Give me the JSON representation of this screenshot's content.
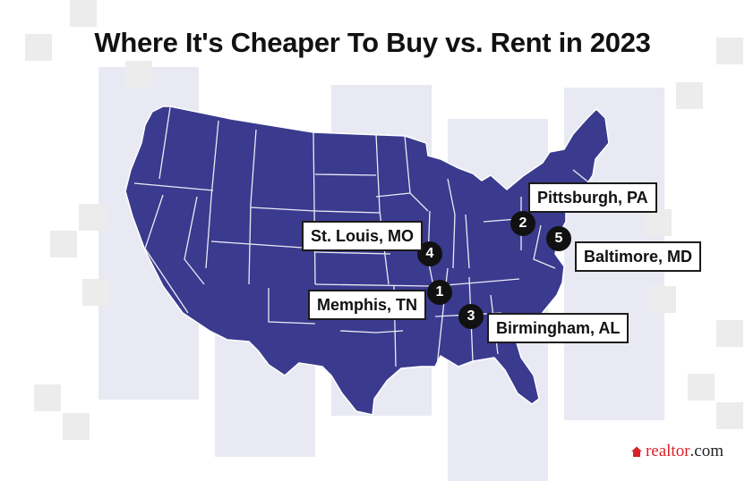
{
  "title": "Where It's Cheaper To Buy vs. Rent in 2023",
  "accent_color": "#3a3a8f",
  "cities": [
    {
      "rank": "1",
      "name": "Memphis, TN"
    },
    {
      "rank": "2",
      "name": "Pittsburgh, PA"
    },
    {
      "rank": "3",
      "name": "Birmingham, AL"
    },
    {
      "rank": "4",
      "name": "St. Louis, MO"
    },
    {
      "rank": "5",
      "name": "Baltimore, MD"
    }
  ],
  "brand": {
    "part1": "realtor",
    "part2": ".com"
  }
}
